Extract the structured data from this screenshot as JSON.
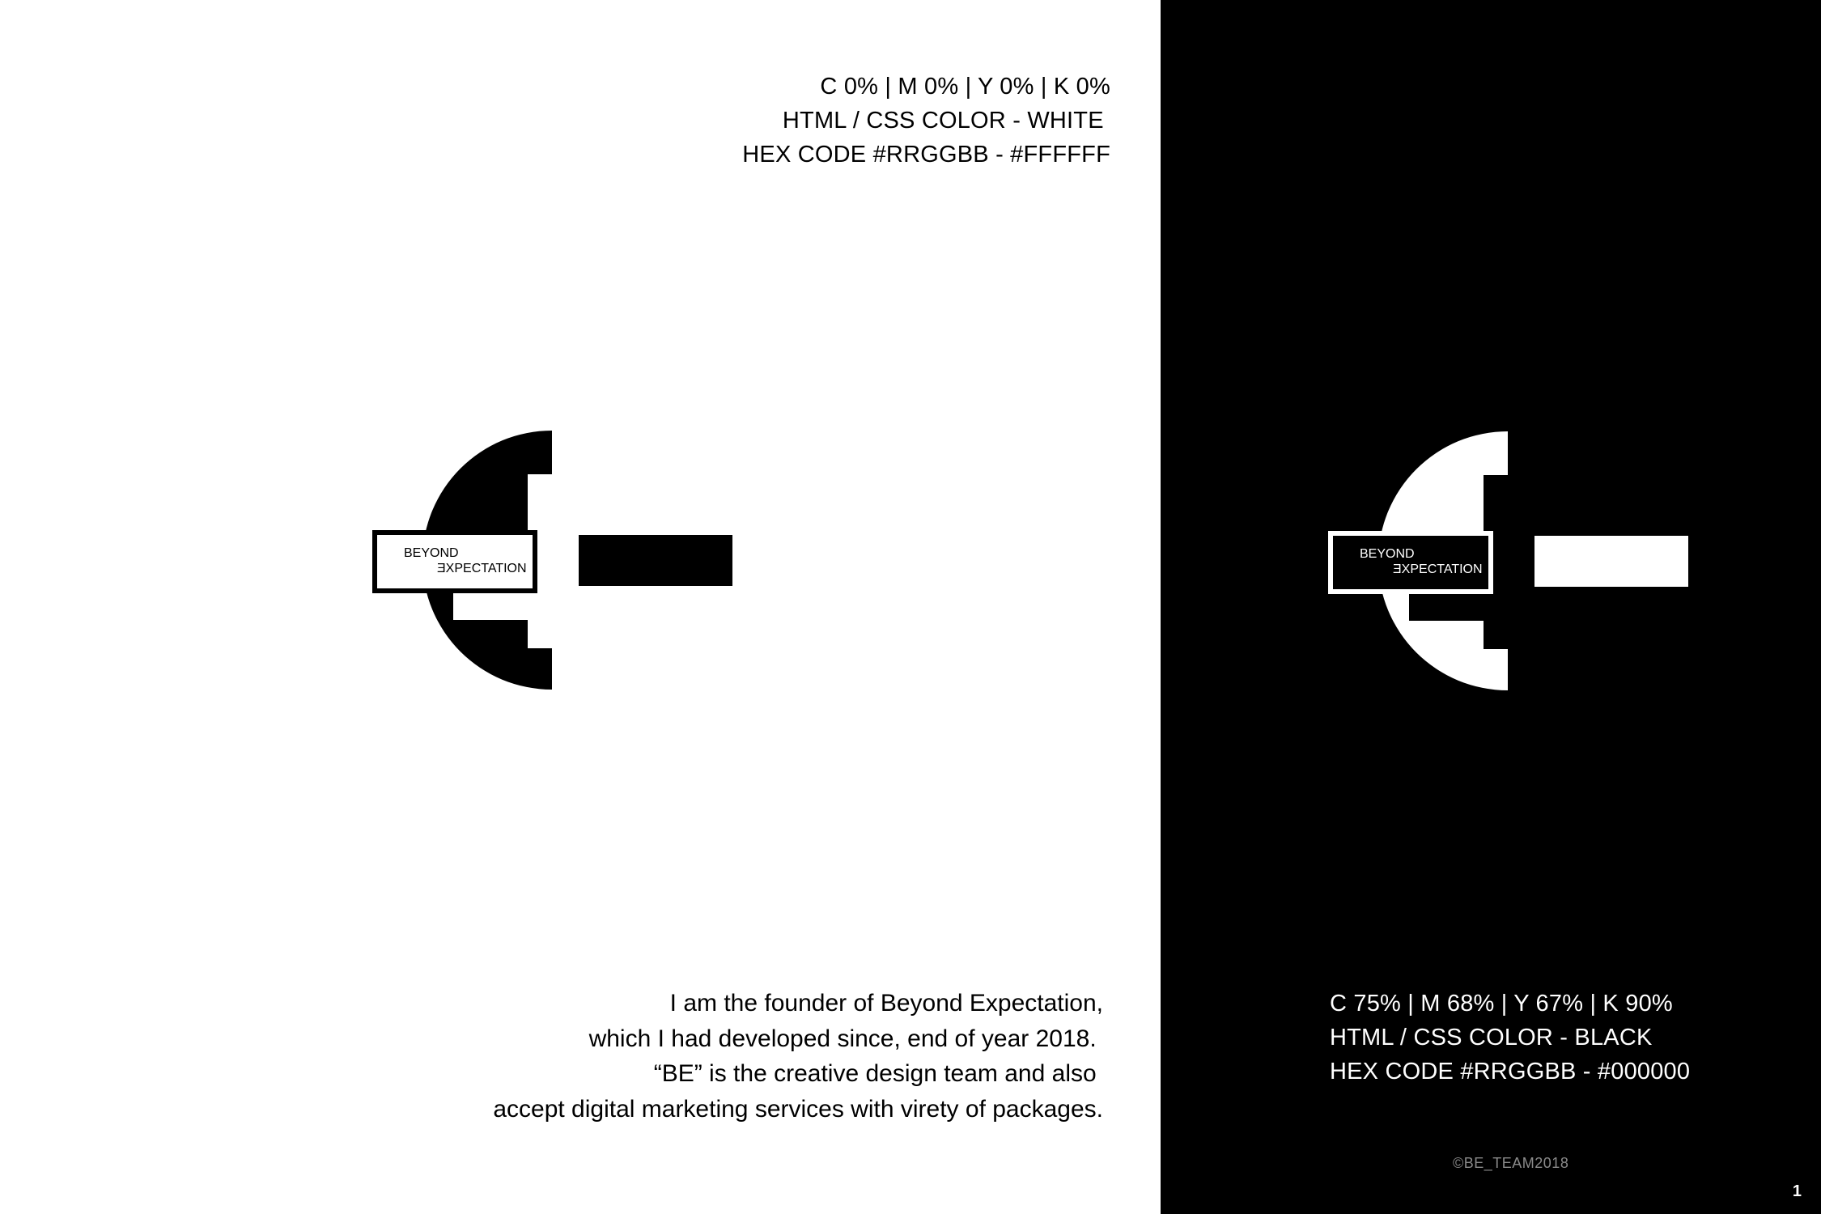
{
  "colors": {
    "white": "#FFFFFF",
    "black": "#000000",
    "copyright_gray": "#8a8a8a"
  },
  "white_panel": {
    "spec_lines": [
      "C 0% | M 0% | Y 0% | K 0%",
      "HTML / CSS COLOR - WHITE ",
      "HEX CODE #RRGGBB - #FFFFFF"
    ],
    "logo": {
      "word1": "BEYOND",
      "word2": "ƎXPECTATION"
    },
    "founder_lines": [
      "I am the founder of Beyond Expectation,",
      "which I had developed since, end of year 2018. ",
      "“BE” is the creative design team and also ",
      "accept digital marketing services with virety of packages."
    ]
  },
  "black_panel": {
    "spec_lines": [
      "C 75% | M 68% | Y 67% | K 90%",
      "HTML / CSS COLOR - BLACK",
      "HEX CODE #RRGGBB - #000000"
    ],
    "logo": {
      "word1": "BEYOND",
      "word2": "ƎXPECTATION"
    },
    "copyright": "©BE_TEAM2018",
    "page_number": "1"
  }
}
